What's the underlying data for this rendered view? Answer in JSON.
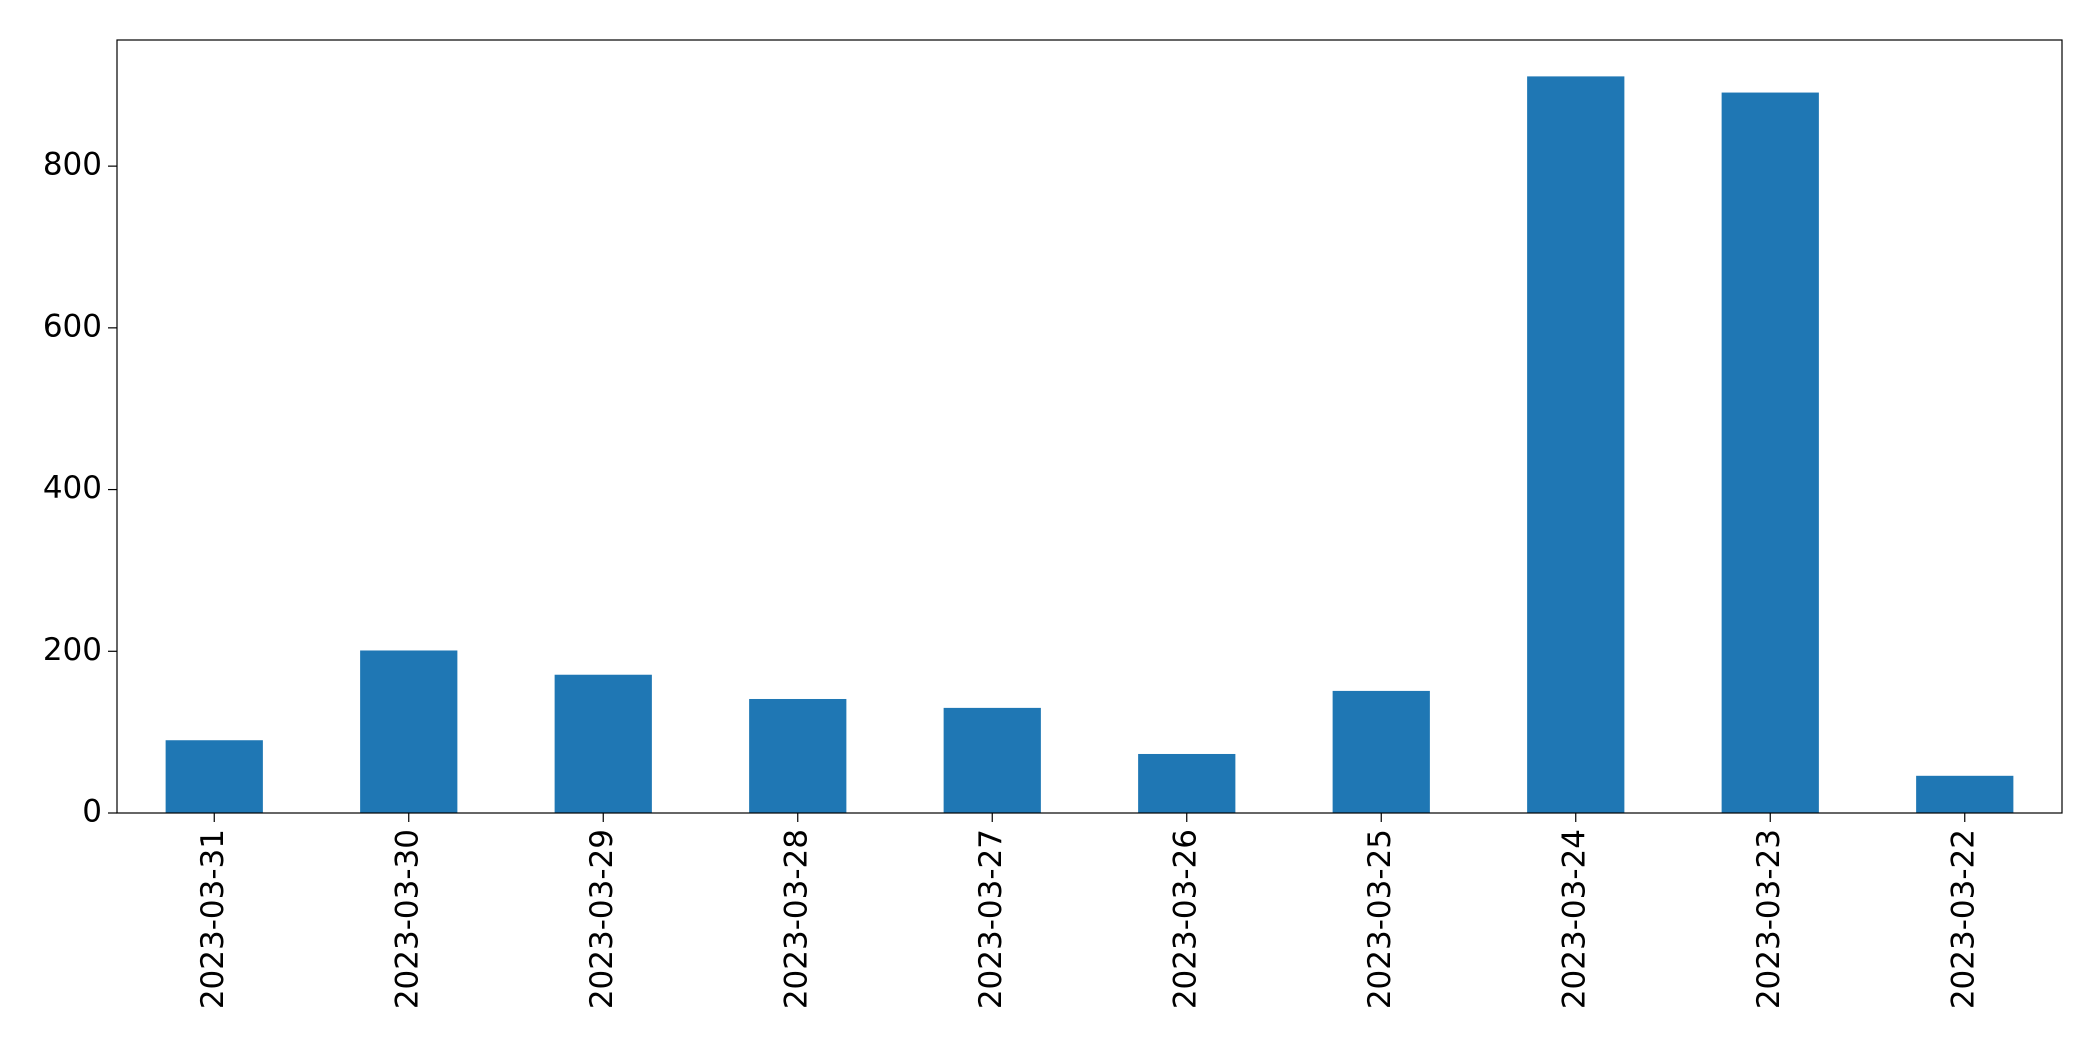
{
  "chart_data": {
    "type": "bar",
    "categories": [
      "2023-03-31",
      "2023-03-30",
      "2023-03-29",
      "2023-03-28",
      "2023-03-27",
      "2023-03-26",
      "2023-03-25",
      "2023-03-24",
      "2023-03-23",
      "2023-03-22"
    ],
    "values": [
      90,
      201,
      171,
      141,
      130,
      73,
      151,
      911,
      891,
      46
    ],
    "color": "#1f77b4",
    "ylim": [
      0,
      956
    ],
    "yticks": [
      0,
      200,
      400,
      600,
      800
    ],
    "grid": false
  }
}
